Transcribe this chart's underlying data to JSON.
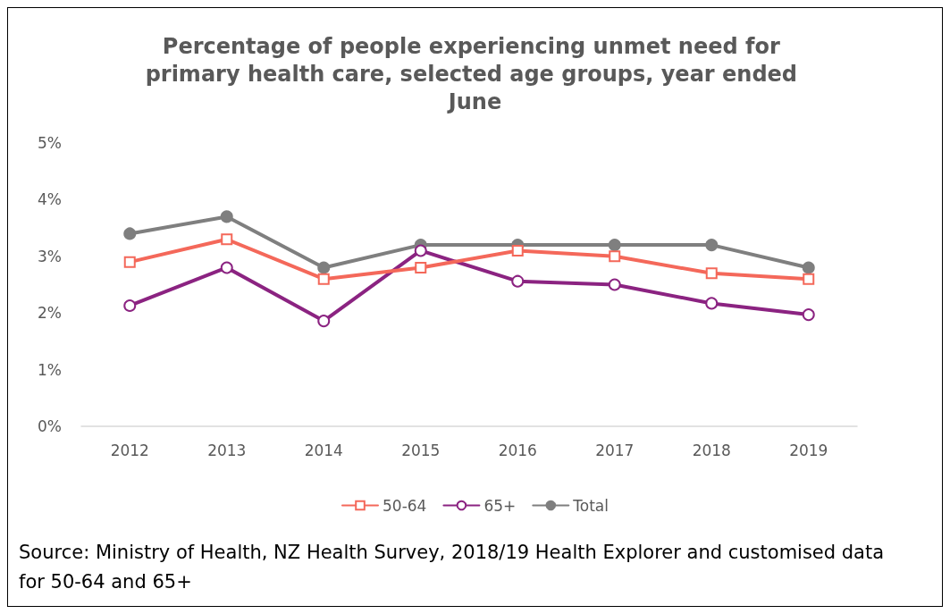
{
  "chart_data": {
    "type": "line",
    "title": "Percentage of people experiencing unmet need for primary health care, selected age groups, year ended June",
    "categories": [
      "2012",
      "2013",
      "2014",
      "2015",
      "2016",
      "2017",
      "2018",
      "2019"
    ],
    "series": [
      {
        "name": "50-64",
        "color": "#f4685a",
        "marker": "square",
        "values": [
          2.9,
          3.3,
          2.6,
          2.8,
          3.1,
          3.0,
          2.7,
          2.6
        ]
      },
      {
        "name": "65+",
        "color": "#8b2381",
        "marker": "circle",
        "values": [
          2.13,
          2.8,
          1.86,
          3.1,
          2.56,
          2.5,
          2.17,
          1.97
        ]
      },
      {
        "name": "Total",
        "color": "#7f7f7f",
        "marker": "circle",
        "values": [
          3.4,
          3.7,
          2.8,
          3.2,
          3.2,
          3.2,
          3.2,
          2.8
        ]
      }
    ],
    "ylim": [
      0,
      5
    ],
    "yticks": [
      {
        "value": 0,
        "label": "0%"
      },
      {
        "value": 1,
        "label": "1%"
      },
      {
        "value": 2,
        "label": "2%"
      },
      {
        "value": 3,
        "label": "3%"
      },
      {
        "value": 4,
        "label": "4%"
      },
      {
        "value": 5,
        "label": "5%"
      }
    ],
    "grid": false,
    "legend": "bottom",
    "line_style": "solid",
    "annotations": [
      "Source: Ministry of Health, NZ Health Survey, 2018/19 Health Explorer and customised data for 50-64 and 65+"
    ]
  }
}
